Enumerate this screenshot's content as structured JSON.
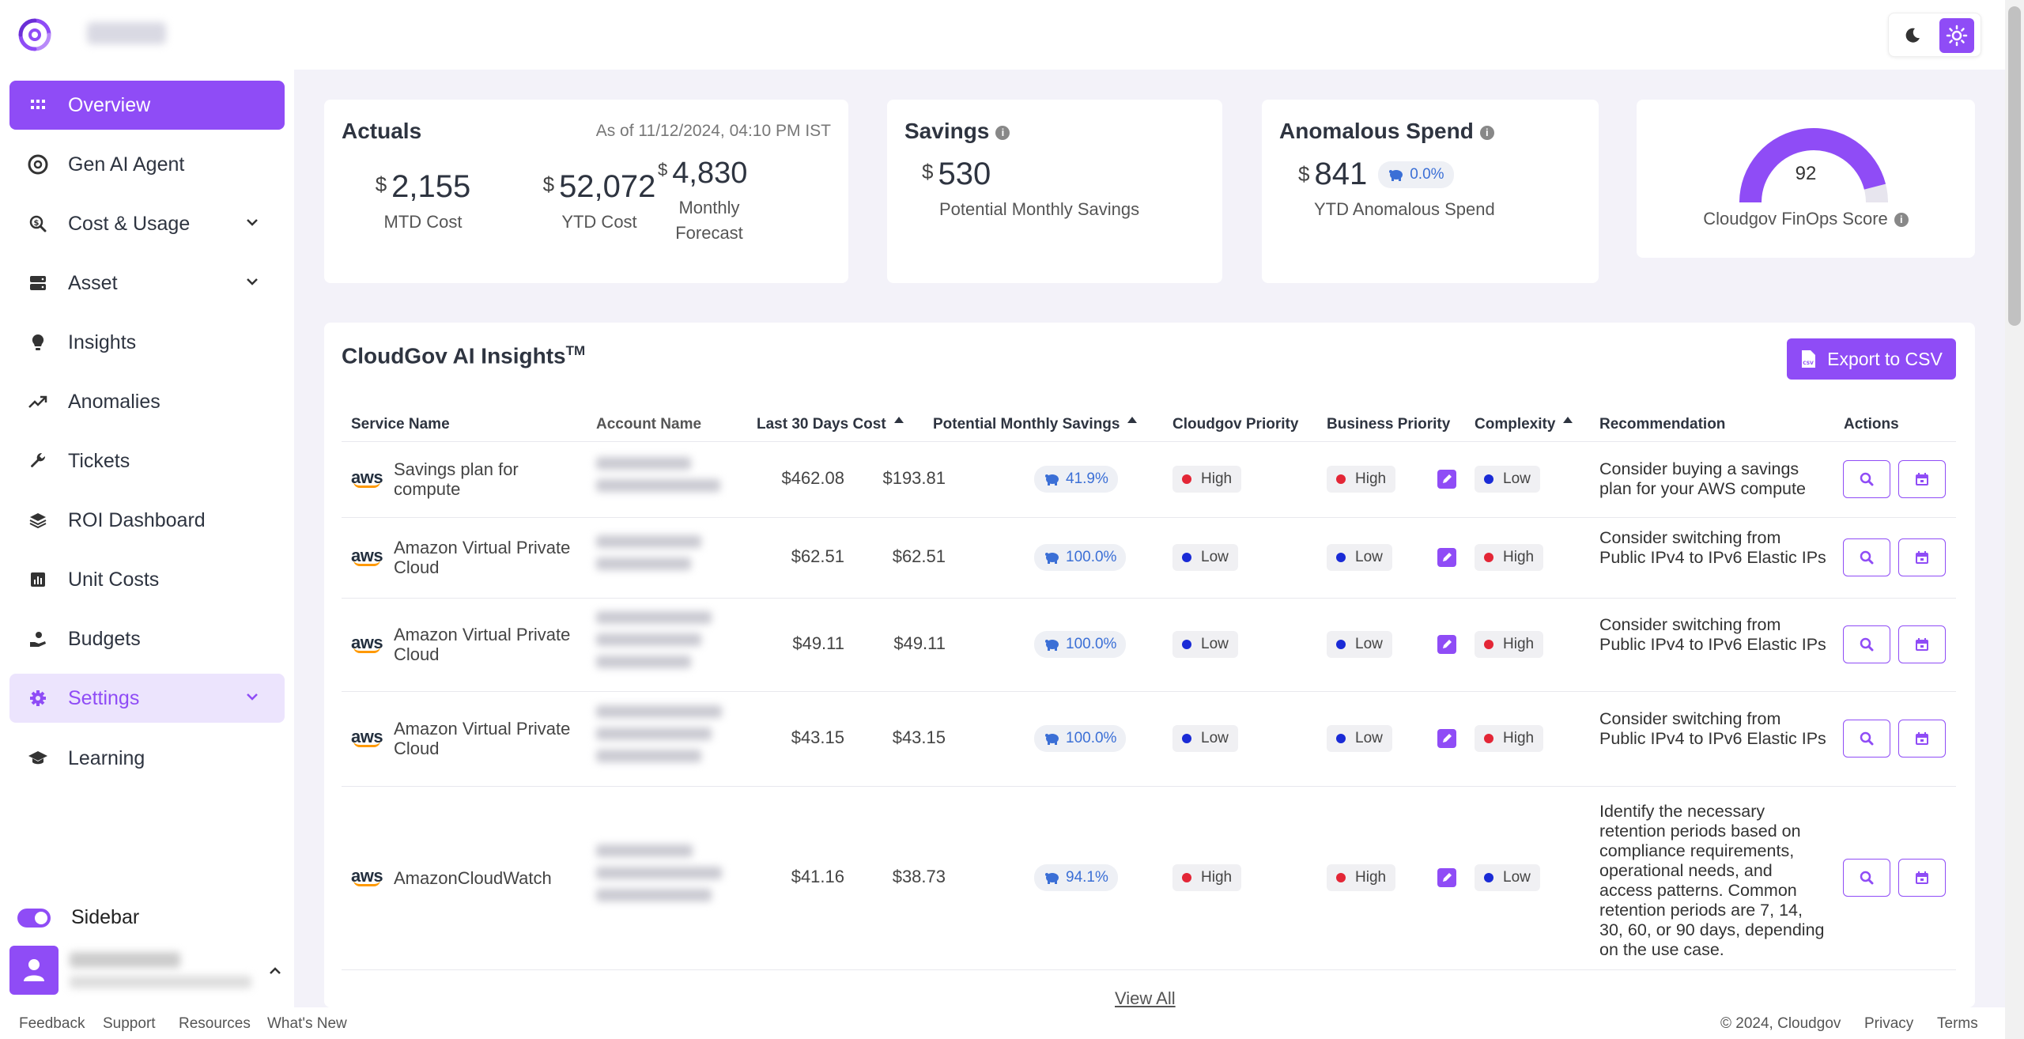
{
  "colors": {
    "accent": "#8f4cf6",
    "high": "#e32636",
    "low": "#1a2bd6",
    "pill_text": "#3b6fd6"
  },
  "topbar": {
    "theme_dark_icon": "moon-icon",
    "theme_light_icon": "sun-icon"
  },
  "sidebar": {
    "items": [
      {
        "label": "Overview",
        "icon": "grid-icon"
      },
      {
        "label": "Gen AI Agent",
        "icon": "ai-agent-icon"
      },
      {
        "label": "Cost & Usage",
        "icon": "search-dollar-icon"
      },
      {
        "label": "Asset",
        "icon": "server-icon"
      },
      {
        "label": "Insights",
        "icon": "lightbulb-icon"
      },
      {
        "label": "Anomalies",
        "icon": "trend-icon"
      },
      {
        "label": "Tickets",
        "icon": "wrench-icon"
      },
      {
        "label": "ROI Dashboard",
        "icon": "layers-icon"
      },
      {
        "label": "Unit Costs",
        "icon": "bar-chart-icon"
      },
      {
        "label": "Budgets",
        "icon": "coin-hand-icon"
      },
      {
        "label": "Settings",
        "icon": "gear-icon"
      },
      {
        "label": "Learning",
        "icon": "graduation-cap-icon"
      }
    ],
    "toggle_label": "Sidebar"
  },
  "actuals": {
    "title": "Actuals",
    "as_of": "As of 11/12/2024, 04:10 PM IST",
    "currency": "$",
    "mtd_value": "2,155",
    "mtd_label": "MTD Cost",
    "ytd_value": "52,072",
    "ytd_label": "YTD Cost",
    "forecast_value": "4,830",
    "forecast_label": "Monthly Forecast"
  },
  "savings": {
    "title": "Savings",
    "currency": "$",
    "value": "530",
    "label": "Potential Monthly Savings"
  },
  "anomalous": {
    "title": "Anomalous Spend",
    "currency": "$",
    "value": "841",
    "pct": "0.0%",
    "label": "YTD Anomalous Spend"
  },
  "finops": {
    "score": "92",
    "score_fraction": 0.92,
    "label": "Cloudgov FinOps Score"
  },
  "insights": {
    "title": "CloudGov AI Insights",
    "title_sup": "TM",
    "export_label": "Export to CSV",
    "headers": [
      "Service Name",
      "Account Name",
      "Last 30 Days Cost",
      "Potential Monthly Savings",
      "Cloudgov Priority",
      "Business Priority",
      "Complexity",
      "Recommendation",
      "Actions"
    ],
    "rows": [
      {
        "service": "Savings plan for compute",
        "cost": "$462.08",
        "savings": "$193.81",
        "pct": "41.9%",
        "cg_priority": "High",
        "biz_priority": "High",
        "complexity": "Low",
        "rec": "Consider buying a savings plan for your AWS compute"
      },
      {
        "service": "Amazon Virtual Private Cloud",
        "cost": "$62.51",
        "savings": "$62.51",
        "pct": "100.0%",
        "cg_priority": "Low",
        "biz_priority": "Low",
        "complexity": "High",
        "rec": "Consider switching from Public IPv4 to IPv6 Elastic IPs"
      },
      {
        "service": "Amazon Virtual Private Cloud",
        "cost": "$49.11",
        "savings": "$49.11",
        "pct": "100.0%",
        "cg_priority": "Low",
        "biz_priority": "Low",
        "complexity": "High",
        "rec": "Consider switching from Public IPv4 to IPv6 Elastic IPs"
      },
      {
        "service": "Amazon Virtual Private Cloud",
        "cost": "$43.15",
        "savings": "$43.15",
        "pct": "100.0%",
        "cg_priority": "Low",
        "biz_priority": "Low",
        "complexity": "High",
        "rec": "Consider switching from Public IPv4 to IPv6 Elastic IPs"
      },
      {
        "service": "AmazonCloudWatch",
        "cost": "$41.16",
        "savings": "$38.73",
        "pct": "94.1%",
        "cg_priority": "High",
        "biz_priority": "High",
        "complexity": "Low",
        "rec": "Identify the necessary retention periods based on compliance requirements, operational needs, and access patterns. Common retention periods are 7, 14, 30, 60, or 90 days, depending on the use case."
      }
    ],
    "aws_label": "aws",
    "view_all": "View All"
  },
  "footer": {
    "feedback": "Feedback",
    "support": "Support",
    "resources": "Resources",
    "whats_new": "What's New",
    "copyright": "© 2024, Cloudgov",
    "privacy": "Privacy",
    "terms": "Terms"
  }
}
